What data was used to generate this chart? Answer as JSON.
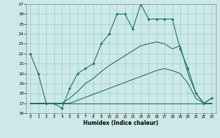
{
  "xlabel": "Humidex (Indice chaleur)",
  "bg_color": "#cce8e8",
  "line_color": "#1a6e6a",
  "grid_color": "#99cccc",
  "xlim": [
    -0.5,
    23.5
  ],
  "ylim": [
    16,
    27
  ],
  "xticks": [
    0,
    1,
    2,
    3,
    4,
    5,
    6,
    7,
    8,
    9,
    10,
    11,
    12,
    13,
    14,
    15,
    16,
    17,
    18,
    19,
    20,
    21,
    22,
    23
  ],
  "yticks": [
    16,
    17,
    18,
    19,
    20,
    21,
    22,
    23,
    24,
    25,
    26,
    27
  ],
  "lines": [
    {
      "x": [
        0,
        1,
        2,
        3,
        4,
        5,
        6,
        7,
        8,
        9,
        10,
        11,
        12,
        13,
        14,
        15,
        16,
        17,
        18,
        19,
        20,
        21,
        22,
        23
      ],
      "y": [
        22,
        20,
        17,
        17,
        16.5,
        18.5,
        20,
        20.5,
        21,
        23,
        24,
        26,
        26,
        24.5,
        27,
        25.5,
        25.5,
        25.5,
        25.5,
        22.5,
        20.5,
        18,
        17,
        17.5
      ],
      "marker": true
    },
    {
      "x": [
        0,
        1,
        2,
        3,
        4,
        5,
        6,
        7,
        8,
        9,
        10,
        11,
        12,
        13,
        14,
        15,
        16,
        17,
        18,
        19,
        20,
        21,
        22,
        23
      ],
      "y": [
        17,
        17,
        17,
        17,
        17,
        17,
        17,
        17,
        17,
        17,
        17,
        17,
        17,
        17,
        17,
        17,
        17,
        17,
        17,
        17,
        17,
        17,
        17,
        17
      ],
      "marker": false
    },
    {
      "x": [
        0,
        1,
        2,
        3,
        4,
        5,
        6,
        7,
        8,
        9,
        10,
        11,
        12,
        13,
        14,
        15,
        16,
        17,
        18,
        19,
        20,
        21,
        22,
        23
      ],
      "y": [
        17,
        17,
        17,
        17,
        17,
        17,
        17.3,
        17.6,
        17.9,
        18.2,
        18.5,
        18.8,
        19.1,
        19.4,
        19.7,
        20.0,
        20.3,
        20.5,
        20.3,
        20.0,
        19.0,
        17.5,
        17,
        17
      ],
      "marker": false
    },
    {
      "x": [
        0,
        1,
        2,
        3,
        4,
        5,
        6,
        7,
        8,
        9,
        10,
        11,
        12,
        13,
        14,
        15,
        16,
        17,
        18,
        19,
        20,
        21,
        22,
        23
      ],
      "y": [
        17,
        17,
        17,
        17,
        17,
        17.5,
        18.2,
        19.0,
        19.5,
        20.2,
        20.8,
        21.3,
        21.8,
        22.3,
        22.8,
        23.0,
        23.2,
        23.0,
        22.5,
        22.8,
        20,
        18,
        17,
        17.5
      ],
      "marker": false
    }
  ]
}
